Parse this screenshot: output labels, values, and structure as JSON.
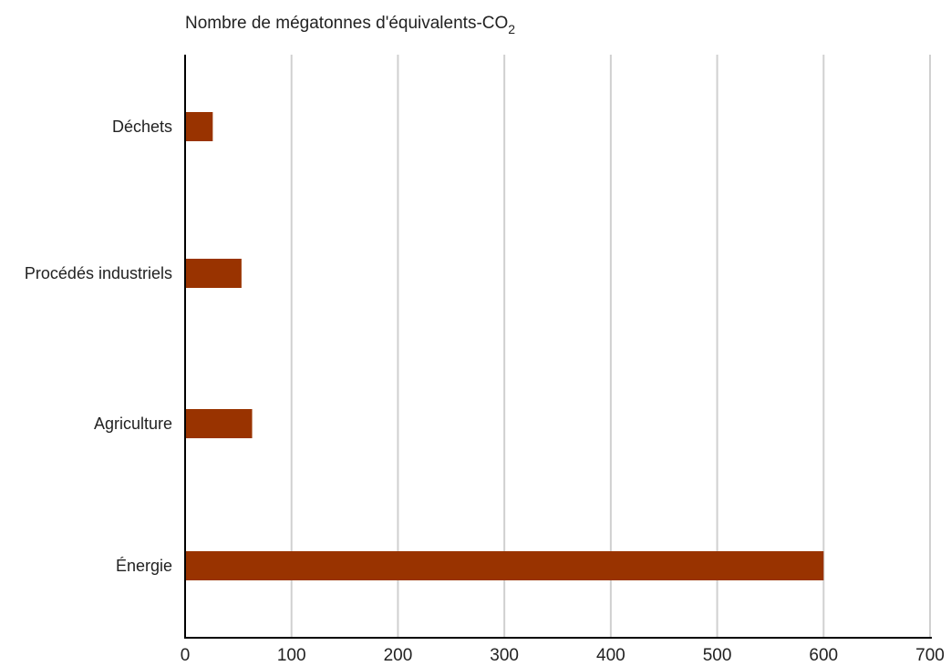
{
  "chart_data": {
    "type": "bar",
    "orientation": "horizontal",
    "title": "Nombre de mégatonnes d'équivalents-CO",
    "title_subscript": "2",
    "categories": [
      "Déchets",
      "Procédés industriels",
      "Agriculture",
      "Énergie"
    ],
    "values": [
      26,
      53,
      63,
      600
    ],
    "xlim": [
      0,
      700
    ],
    "xticks": [
      "0",
      "100",
      "200",
      "300",
      "400",
      "500",
      "600",
      "700"
    ],
    "grid": "vertical",
    "colors": {
      "bar": "#993300",
      "grid": "#d0d0d0",
      "axis": "#000000"
    }
  }
}
